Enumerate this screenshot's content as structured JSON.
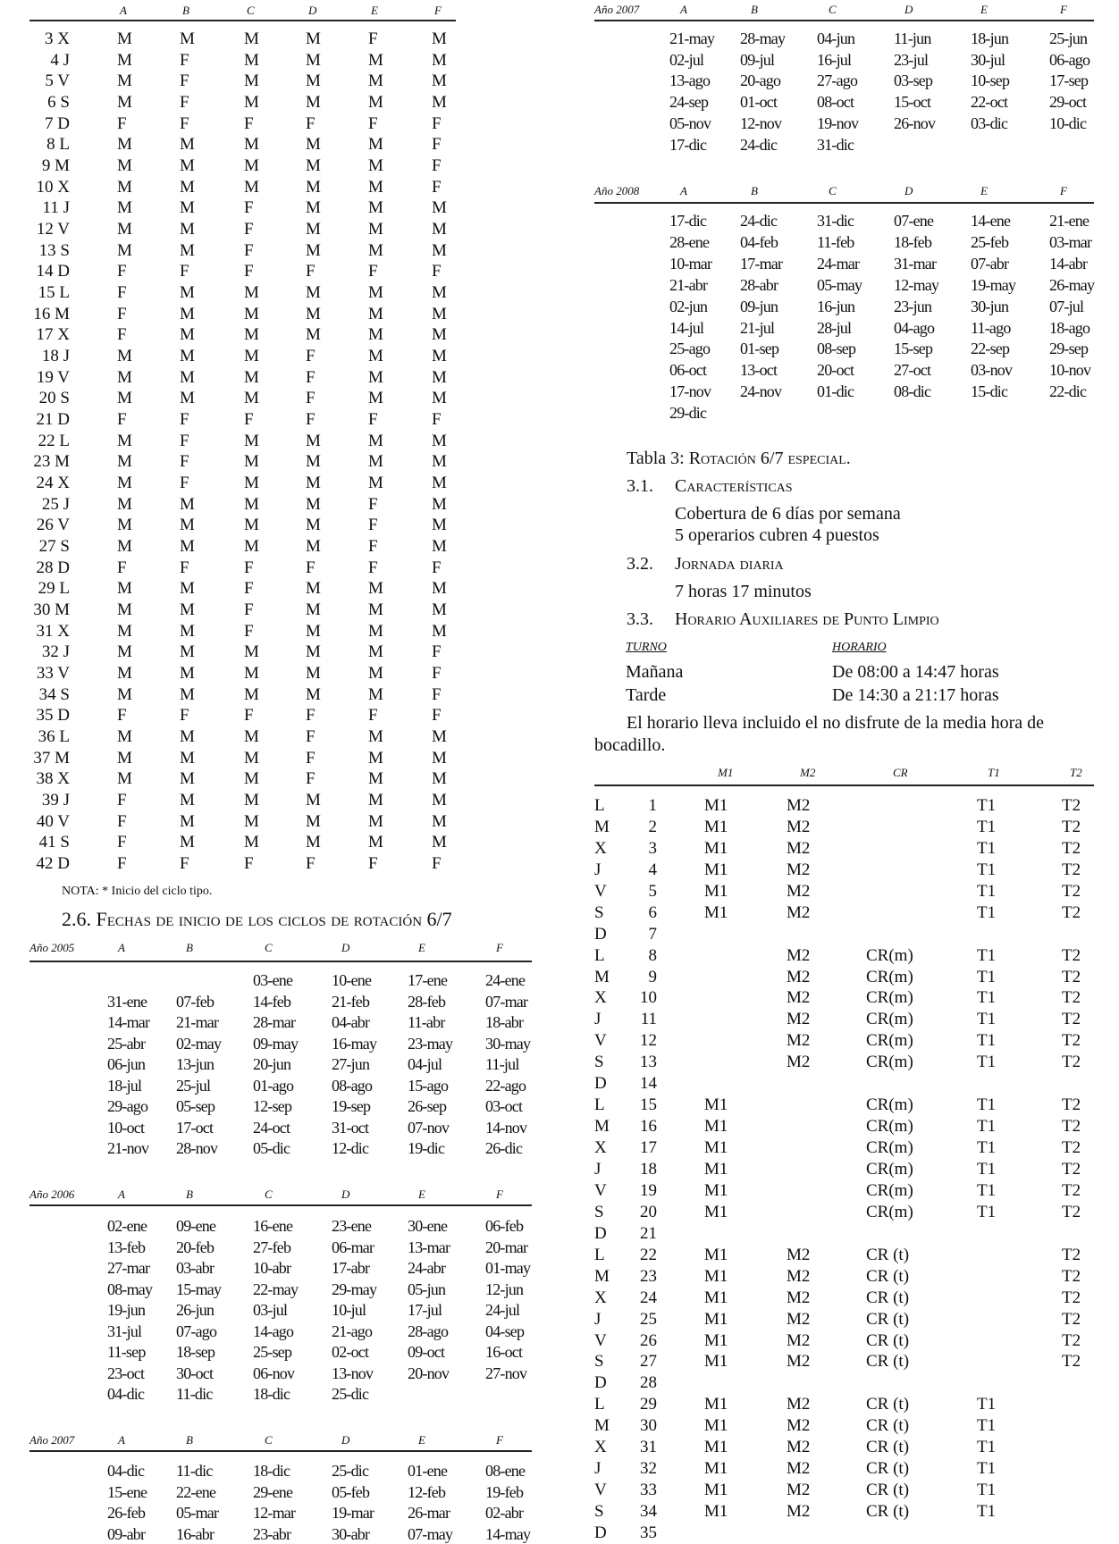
{
  "left_table": {
    "columns": [
      "A",
      "B",
      "C",
      "D",
      "E",
      "F"
    ],
    "rows": [
      {
        "day": "3 X",
        "cells": [
          "M",
          "M",
          "M",
          "M",
          "F",
          "M"
        ]
      },
      {
        "day": "4 J",
        "cells": [
          "M",
          "F",
          "M",
          "M",
          "M",
          "M"
        ]
      },
      {
        "day": "5 V",
        "cells": [
          "M",
          "F",
          "M",
          "M",
          "M",
          "M"
        ]
      },
      {
        "day": "6 S",
        "cells": [
          "M",
          "F",
          "M",
          "M",
          "M",
          "M"
        ]
      },
      {
        "day": "7 D",
        "cells": [
          "F",
          "F",
          "F",
          "F",
          "F",
          "F"
        ]
      },
      {
        "day": "8 L",
        "cells": [
          "M",
          "M",
          "M",
          "M",
          "M",
          "F"
        ]
      },
      {
        "day": "9 M",
        "cells": [
          "M",
          "M",
          "M",
          "M",
          "M",
          "F"
        ]
      },
      {
        "day": "10 X",
        "cells": [
          "M",
          "M",
          "M",
          "M",
          "M",
          "F"
        ]
      },
      {
        "day": "11 J",
        "cells": [
          "M",
          "M",
          "F",
          "M",
          "M",
          "M"
        ]
      },
      {
        "day": "12 V",
        "cells": [
          "M",
          "M",
          "F",
          "M",
          "M",
          "M"
        ]
      },
      {
        "day": "13 S",
        "cells": [
          "M",
          "M",
          "F",
          "M",
          "M",
          "M"
        ]
      },
      {
        "day": "14 D",
        "cells": [
          "F",
          "F",
          "F",
          "F",
          "F",
          "F"
        ]
      },
      {
        "day": "15 L",
        "cells": [
          "F",
          "M",
          "M",
          "M",
          "M",
          "M"
        ]
      },
      {
        "day": "16 M",
        "cells": [
          "F",
          "M",
          "M",
          "M",
          "M",
          "M"
        ]
      },
      {
        "day": "17 X",
        "cells": [
          "F",
          "M",
          "M",
          "M",
          "M",
          "M"
        ]
      },
      {
        "day": "18 J",
        "cells": [
          "M",
          "M",
          "M",
          "F",
          "M",
          "M"
        ]
      },
      {
        "day": "19 V",
        "cells": [
          "M",
          "M",
          "M",
          "F",
          "M",
          "M"
        ]
      },
      {
        "day": "20 S",
        "cells": [
          "M",
          "M",
          "M",
          "F",
          "M",
          "M"
        ]
      },
      {
        "day": "21 D",
        "cells": [
          "F",
          "F",
          "F",
          "F",
          "F",
          "F"
        ]
      },
      {
        "day": "22 L",
        "cells": [
          "M",
          "F",
          "M",
          "M",
          "M",
          "M"
        ]
      },
      {
        "day": "23 M",
        "cells": [
          "M",
          "F",
          "M",
          "M",
          "M",
          "M"
        ]
      },
      {
        "day": "24 X",
        "cells": [
          "M",
          "F",
          "M",
          "M",
          "M",
          "M"
        ]
      },
      {
        "day": "25 J",
        "cells": [
          "M",
          "M",
          "M",
          "M",
          "F",
          "M"
        ]
      },
      {
        "day": "26 V",
        "cells": [
          "M",
          "M",
          "M",
          "M",
          "F",
          "M"
        ]
      },
      {
        "day": "27 S",
        "cells": [
          "M",
          "M",
          "M",
          "M",
          "F",
          "M"
        ]
      },
      {
        "day": "28 D",
        "cells": [
          "F",
          "F",
          "F",
          "F",
          "F",
          "F"
        ]
      },
      {
        "day": "29 L",
        "cells": [
          "M",
          "M",
          "F",
          "M",
          "M",
          "M"
        ]
      },
      {
        "day": "30 M",
        "cells": [
          "M",
          "M",
          "F",
          "M",
          "M",
          "M"
        ]
      },
      {
        "day": "31 X",
        "cells": [
          "M",
          "M",
          "F",
          "M",
          "M",
          "M"
        ]
      },
      {
        "day": "32 J",
        "cells": [
          "M",
          "M",
          "M",
          "M",
          "M",
          "F"
        ]
      },
      {
        "day": "33 V",
        "cells": [
          "M",
          "M",
          "M",
          "M",
          "M",
          "F"
        ]
      },
      {
        "day": "34 S",
        "cells": [
          "M",
          "M",
          "M",
          "M",
          "M",
          "F"
        ]
      },
      {
        "day": "35 D",
        "cells": [
          "F",
          "F",
          "F",
          "F",
          "F",
          "F"
        ]
      },
      {
        "day": "36 L",
        "cells": [
          "M",
          "M",
          "M",
          "F",
          "M",
          "M"
        ]
      },
      {
        "day": "37 M",
        "cells": [
          "M",
          "M",
          "M",
          "F",
          "M",
          "M"
        ]
      },
      {
        "day": "38 X",
        "cells": [
          "M",
          "M",
          "M",
          "F",
          "M",
          "M"
        ]
      },
      {
        "day": "39 J",
        "cells": [
          "F",
          "M",
          "M",
          "M",
          "M",
          "M"
        ]
      },
      {
        "day": "40 V",
        "cells": [
          "F",
          "M",
          "M",
          "M",
          "M",
          "M"
        ]
      },
      {
        "day": "41 S",
        "cells": [
          "F",
          "M",
          "M",
          "M",
          "M",
          "M"
        ]
      },
      {
        "day": "42 D",
        "cells": [
          "F",
          "F",
          "F",
          "F",
          "F",
          "F"
        ]
      }
    ],
    "note": "NOTA: * Inicio del ciclo tipo."
  },
  "section_26_title": "2.6. Fechas de inicio de los ciclos de rotación 6/7",
  "date_tables": [
    {
      "year": "Año 2005",
      "columns": [
        "A",
        "B",
        "C",
        "D",
        "E",
        "F"
      ],
      "rows": [
        [
          "",
          "",
          "03-ene",
          "10-ene",
          "17-ene",
          "24-ene"
        ],
        [
          "31-ene",
          "07-feb",
          "14-feb",
          "21-feb",
          "28-feb",
          "07-mar"
        ],
        [
          "14-mar",
          "21-mar",
          "28-mar",
          "04-abr",
          "11-abr",
          "18-abr"
        ],
        [
          "25-abr",
          "02-may",
          "09-may",
          "16-may",
          "23-may",
          "30-may"
        ],
        [
          "06-jun",
          "13-jun",
          "20-jun",
          "27-jun",
          "04-jul",
          "11-jul"
        ],
        [
          "18-jul",
          "25-jul",
          "01-ago",
          "08-ago",
          "15-ago",
          "22-ago"
        ],
        [
          "29-ago",
          "05-sep",
          "12-sep",
          "19-sep",
          "26-sep",
          "03-oct"
        ],
        [
          "10-oct",
          "17-oct",
          "24-oct",
          "31-oct",
          "07-nov",
          "14-nov"
        ],
        [
          "21-nov",
          "28-nov",
          "05-dic",
          "12-dic",
          "19-dic",
          "26-dic"
        ]
      ]
    },
    {
      "year": "Año 2006",
      "columns": [
        "A",
        "B",
        "C",
        "D",
        "E",
        "F"
      ],
      "rows": [
        [
          "02-ene",
          "09-ene",
          "16-ene",
          "23-ene",
          "30-ene",
          "06-feb"
        ],
        [
          "13-feb",
          "20-feb",
          "27-feb",
          "06-mar",
          "13-mar",
          "20-mar"
        ],
        [
          "27-mar",
          "03-abr",
          "10-abr",
          "17-abr",
          "24-abr",
          "01-may"
        ],
        [
          "08-may",
          "15-may",
          "22-may",
          "29-may",
          "05-jun",
          "12-jun"
        ],
        [
          "19-jun",
          "26-jun",
          "03-jul",
          "10-jul",
          "17-jul",
          "24-jul"
        ],
        [
          "31-jul",
          "07-ago",
          "14-ago",
          "21-ago",
          "28-ago",
          "04-sep"
        ],
        [
          "11-sep",
          "18-sep",
          "25-sep",
          "02-oct",
          "09-oct",
          "16-oct"
        ],
        [
          "23-oct",
          "30-oct",
          "06-nov",
          "13-nov",
          "20-nov",
          "27-nov"
        ],
        [
          "04-dic",
          "11-dic",
          "18-dic",
          "25-dic",
          "",
          ""
        ]
      ]
    },
    {
      "year": "Año 2007",
      "columns": [
        "A",
        "B",
        "C",
        "D",
        "E",
        "F"
      ],
      "rows": [
        [
          "04-dic",
          "11-dic",
          "18-dic",
          "25-dic",
          "01-ene",
          "08-ene"
        ],
        [
          "15-ene",
          "22-ene",
          "29-ene",
          "05-feb",
          "12-feb",
          "19-feb"
        ],
        [
          "26-feb",
          "05-mar",
          "12-mar",
          "19-mar",
          "26-mar",
          "02-abr"
        ],
        [
          "09-abr",
          "16-abr",
          "23-abr",
          "30-abr",
          "07-may",
          "14-may"
        ]
      ]
    },
    {
      "year": "Año 2007",
      "columns": [
        "A",
        "B",
        "C",
        "D",
        "E",
        "F"
      ],
      "rows": [
        [
          "21-may",
          "28-may",
          "04-jun",
          "11-jun",
          "18-jun",
          "25-jun"
        ],
        [
          "02-jul",
          "09-jul",
          "16-jul",
          "23-jul",
          "30-jul",
          "06-ago"
        ],
        [
          "13-ago",
          "20-ago",
          "27-ago",
          "03-sep",
          "10-sep",
          "17-sep"
        ],
        [
          "24-sep",
          "01-oct",
          "08-oct",
          "15-oct",
          "22-oct",
          "29-oct"
        ],
        [
          "05-nov",
          "12-nov",
          "19-nov",
          "26-nov",
          "03-dic",
          "10-dic"
        ],
        [
          "17-dic",
          "24-dic",
          "31-dic",
          "",
          "",
          ""
        ]
      ]
    },
    {
      "year": "Año 2008",
      "columns": [
        "A",
        "B",
        "C",
        "D",
        "E",
        "F"
      ],
      "rows": [
        [
          "17-dic",
          "24-dic",
          "31-dic",
          "07-ene",
          "14-ene",
          "21-ene"
        ],
        [
          "28-ene",
          "04-feb",
          "11-feb",
          "18-feb",
          "25-feb",
          "03-mar"
        ],
        [
          "10-mar",
          "17-mar",
          "24-mar",
          "31-mar",
          "07-abr",
          "14-abr"
        ],
        [
          "21-abr",
          "28-abr",
          "05-may",
          "12-may",
          "19-may",
          "26-may"
        ],
        [
          "02-jun",
          "09-jun",
          "16-jun",
          "23-jun",
          "30-jun",
          "07-jul"
        ],
        [
          "14-jul",
          "21-jul",
          "28-jul",
          "04-ago",
          "11-ago",
          "18-ago"
        ],
        [
          "25-ago",
          "01-sep",
          "08-sep",
          "15-sep",
          "22-sep",
          "29-sep"
        ],
        [
          "06-oct",
          "13-oct",
          "20-oct",
          "27-oct",
          "03-nov",
          "10-nov"
        ],
        [
          "17-nov",
          "24-nov",
          "01-dic",
          "08-dic",
          "15-dic",
          "22-dic"
        ],
        [
          "29-dic",
          "",
          "",
          "",
          "",
          ""
        ]
      ]
    }
  ],
  "tabla3": {
    "title_prefix": "Tabla 3: ",
    "title": "Rotación 6/7 especial.",
    "s31_num": "3.1.",
    "s31_title": "Características",
    "s31_line1": "Cobertura de 6 días por semana",
    "s31_line2": "5 operarios cubren 4 puestos",
    "s32_num": "3.2.",
    "s32_title": "Jornada diaria",
    "s32_line1": "7 horas 17 minutos",
    "s33_num": "3.3.",
    "s33_title": "Horario Auxiliares de Punto Limpio",
    "turno_header": "TURNO",
    "horario_header": "HORARIO",
    "shifts": [
      {
        "name": "Mañana",
        "hours": "De 08:00 a 14:47 horas"
      },
      {
        "name": "Tarde",
        "hours": "De 14:30 a 21:17 horas"
      }
    ],
    "para_line1": "El horario lleva incluido el no disfrute de la media hora de",
    "para_line2": "bocadillo."
  },
  "right_table": {
    "columns": [
      "M1",
      "M2",
      "CR",
      "T1",
      "T2"
    ],
    "rows": [
      {
        "d": "L",
        "n": "1",
        "c": [
          "M1",
          "M2",
          "",
          "T1",
          "T2"
        ]
      },
      {
        "d": "M",
        "n": "2",
        "c": [
          "M1",
          "M2",
          "",
          "T1",
          "T2"
        ]
      },
      {
        "d": "X",
        "n": "3",
        "c": [
          "M1",
          "M2",
          "",
          "T1",
          "T2"
        ]
      },
      {
        "d": "J",
        "n": "4",
        "c": [
          "M1",
          "M2",
          "",
          "T1",
          "T2"
        ]
      },
      {
        "d": "V",
        "n": "5",
        "c": [
          "M1",
          "M2",
          "",
          "T1",
          "T2"
        ]
      },
      {
        "d": "S",
        "n": "6",
        "c": [
          "M1",
          "M2",
          "",
          "T1",
          "T2"
        ]
      },
      {
        "d": "D",
        "n": "7",
        "c": [
          "",
          "",
          "",
          "",
          ""
        ]
      },
      {
        "d": "L",
        "n": "8",
        "c": [
          "",
          "M2",
          "CR(m)",
          "T1",
          "T2"
        ]
      },
      {
        "d": "M",
        "n": "9",
        "c": [
          "",
          "M2",
          "CR(m)",
          "T1",
          "T2"
        ]
      },
      {
        "d": "X",
        "n": "10",
        "c": [
          "",
          "M2",
          "CR(m)",
          "T1",
          "T2"
        ]
      },
      {
        "d": "J",
        "n": "11",
        "c": [
          "",
          "M2",
          "CR(m)",
          "T1",
          "T2"
        ]
      },
      {
        "d": "V",
        "n": "12",
        "c": [
          "",
          "M2",
          "CR(m)",
          "T1",
          "T2"
        ]
      },
      {
        "d": "S",
        "n": "13",
        "c": [
          "",
          "M2",
          "CR(m)",
          "T1",
          "T2"
        ]
      },
      {
        "d": "D",
        "n": "14",
        "c": [
          "",
          "",
          "",
          "",
          ""
        ]
      },
      {
        "d": "L",
        "n": "15",
        "c": [
          "M1",
          "",
          "CR(m)",
          "T1",
          "T2"
        ]
      },
      {
        "d": "M",
        "n": "16",
        "c": [
          "M1",
          "",
          "CR(m)",
          "T1",
          "T2"
        ]
      },
      {
        "d": "X",
        "n": "17",
        "c": [
          "M1",
          "",
          "CR(m)",
          "T1",
          "T2"
        ]
      },
      {
        "d": "J",
        "n": "18",
        "c": [
          "M1",
          "",
          "CR(m)",
          "T1",
          "T2"
        ]
      },
      {
        "d": "V",
        "n": "19",
        "c": [
          "M1",
          "",
          "CR(m)",
          "T1",
          "T2"
        ]
      },
      {
        "d": "S",
        "n": "20",
        "c": [
          "M1",
          "",
          "CR(m)",
          "T1",
          "T2"
        ]
      },
      {
        "d": "D",
        "n": "21",
        "c": [
          "",
          "",
          "",
          "",
          ""
        ]
      },
      {
        "d": "L",
        "n": "22",
        "c": [
          "M1",
          "M2",
          "CR (t)",
          "",
          "T2"
        ]
      },
      {
        "d": "M",
        "n": "23",
        "c": [
          "M1",
          "M2",
          "CR (t)",
          "",
          "T2"
        ]
      },
      {
        "d": "X",
        "n": "24",
        "c": [
          "M1",
          "M2",
          "CR (t)",
          "",
          "T2"
        ]
      },
      {
        "d": "J",
        "n": "25",
        "c": [
          "M1",
          "M2",
          "CR (t)",
          "",
          "T2"
        ]
      },
      {
        "d": "V",
        "n": "26",
        "c": [
          "M1",
          "M2",
          "CR (t)",
          "",
          "T2"
        ]
      },
      {
        "d": "S",
        "n": "27",
        "c": [
          "M1",
          "M2",
          "CR (t)",
          "",
          "T2"
        ]
      },
      {
        "d": "D",
        "n": "28",
        "c": [
          "",
          "",
          "",
          "",
          ""
        ]
      },
      {
        "d": "L",
        "n": "29",
        "c": [
          "M1",
          "M2",
          "CR (t)",
          "T1",
          ""
        ]
      },
      {
        "d": "M",
        "n": "30",
        "c": [
          "M1",
          "M2",
          "CR (t)",
          "T1",
          ""
        ]
      },
      {
        "d": "X",
        "n": "31",
        "c": [
          "M1",
          "M2",
          "CR (t)",
          "T1",
          ""
        ]
      },
      {
        "d": "J",
        "n": "32",
        "c": [
          "M1",
          "M2",
          "CR (t)",
          "T1",
          ""
        ]
      },
      {
        "d": "V",
        "n": "33",
        "c": [
          "M1",
          "M2",
          "CR (t)",
          "T1",
          ""
        ]
      },
      {
        "d": "S",
        "n": "34",
        "c": [
          "M1",
          "M2",
          "CR (t)",
          "T1",
          ""
        ]
      },
      {
        "d": "D",
        "n": "35",
        "c": [
          "",
          "",
          "",
          "",
          ""
        ]
      }
    ]
  }
}
